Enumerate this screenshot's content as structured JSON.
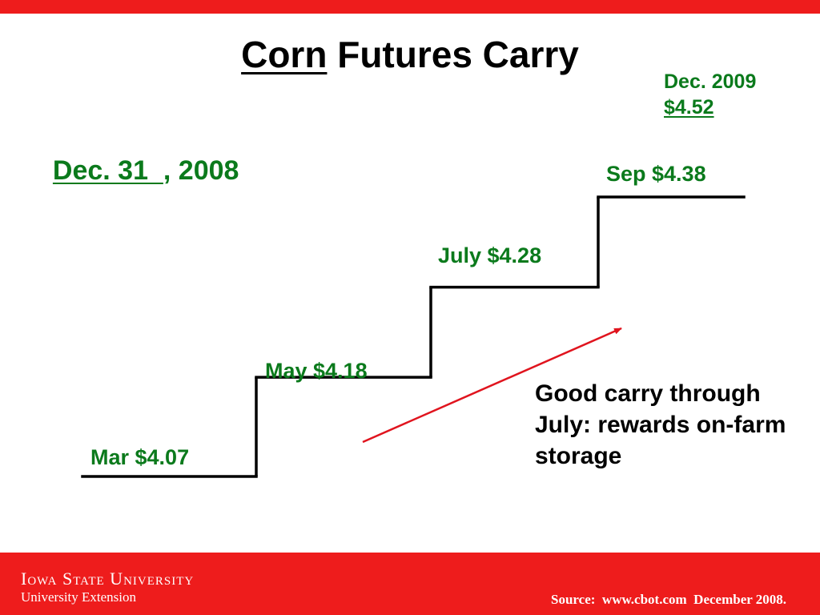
{
  "colors": {
    "band": "#ee1c1c",
    "green": "#0b7a1c",
    "line": "#000000",
    "arrow": "#e0141e"
  },
  "title": {
    "underlined": "Corn",
    "rest": " Futures Carry"
  },
  "date": {
    "underlined": "Dec. 31  ",
    "rest": ", 2008"
  },
  "dec2009": {
    "line1": "Dec. 2009",
    "line2": "$4.52"
  },
  "note": "Good carry through July: rewards on-farm storage",
  "chart_data": {
    "type": "line",
    "title": "Corn Futures Carry",
    "step": true,
    "categories": [
      "Mar",
      "May",
      "July",
      "Sep"
    ],
    "values": [
      4.07,
      4.18,
      4.28,
      4.38
    ],
    "labels": [
      "Mar $4.07",
      "May $4.18",
      "July $4.28",
      "Sep $4.38"
    ],
    "extra_point": {
      "label": "Dec. 2009",
      "value": 4.52
    },
    "trend_arrow": true,
    "ylim": [
      4.07,
      4.38
    ],
    "xlabel": "",
    "ylabel": "",
    "grid": false
  },
  "footer": {
    "university": "Iowa State University",
    "unit": "University Extension",
    "source": "Source:  www.cbot.com  December 2008."
  }
}
